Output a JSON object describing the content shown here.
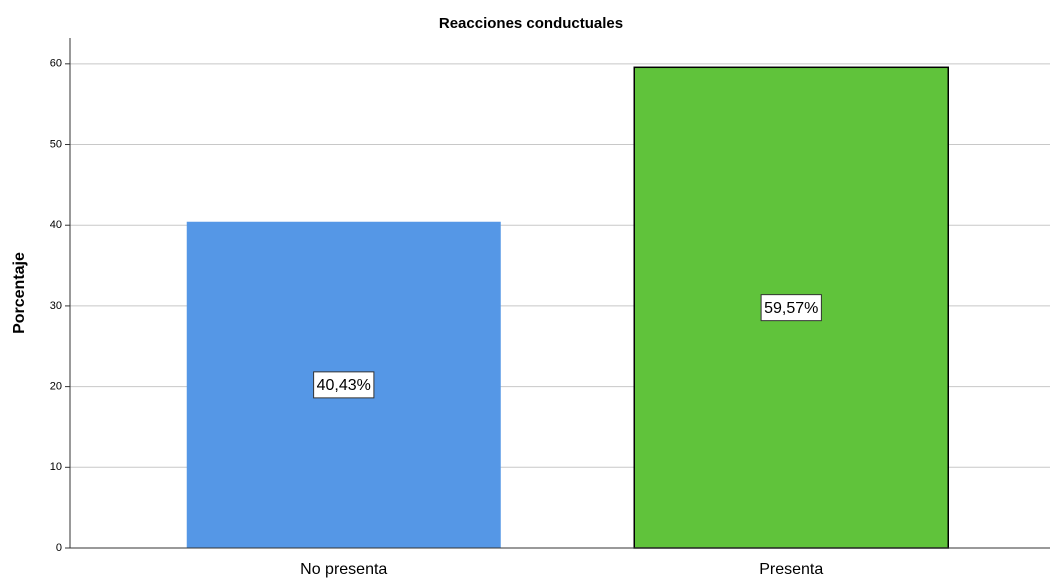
{
  "chart_data": {
    "type": "bar",
    "title": "Reacciones conductuales",
    "ylabel": "Porcentaje",
    "categories": [
      "No presenta",
      "Presenta"
    ],
    "values": [
      40.43,
      59.57
    ],
    "value_labels": [
      "40,43%",
      "59,57%"
    ],
    "colors": [
      "#5597e6",
      "#60c33b"
    ],
    "ylim": [
      0,
      63.2
    ],
    "yticks": [
      0,
      10,
      20,
      30,
      40,
      50,
      60
    ],
    "grid": true
  }
}
